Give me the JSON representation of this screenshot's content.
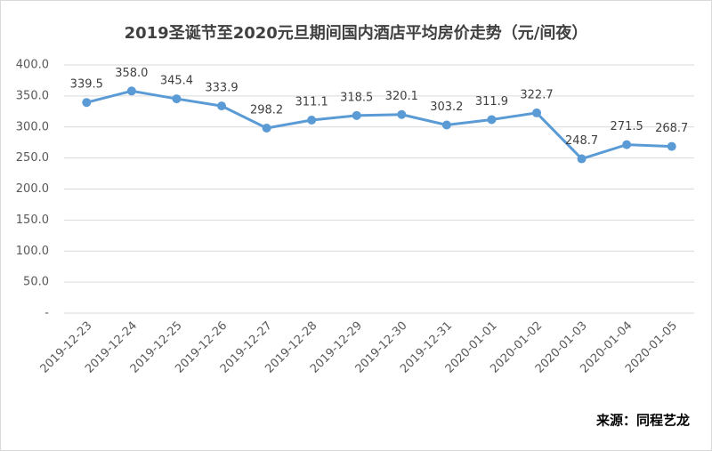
{
  "chart_data": {
    "type": "line",
    "title": "2019圣诞节至2020元旦期间国内酒店平均房价走势（元/间夜）",
    "source": "来源：同程艺龙",
    "categories": [
      "2019-12-23",
      "2019-12-24",
      "2019-12-25",
      "2019-12-26",
      "2019-12-27",
      "2019-12-28",
      "2019-12-29",
      "2019-12-30",
      "2019-12-31",
      "2020-01-01",
      "2020-01-02",
      "2020-01-03",
      "2020-01-04",
      "2020-01-05"
    ],
    "values": [
      339.5,
      358.0,
      345.4,
      333.9,
      298.2,
      311.1,
      318.5,
      320.1,
      303.2,
      311.9,
      322.7,
      248.7,
      271.5,
      268.7
    ],
    "value_labels": [
      "339.5",
      "358.0",
      "345.4",
      "333.9",
      "298.2",
      "311.1",
      "318.5",
      "320.1",
      "303.2",
      "311.9",
      "322.7",
      "248.7",
      "271.5",
      "268.7"
    ],
    "color": "#5b9bd5",
    "ylim": [
      0,
      400
    ],
    "yticks": [
      {
        "value": 0,
        "label": "-"
      },
      {
        "value": 50,
        "label": "50.0"
      },
      {
        "value": 100,
        "label": "100.0"
      },
      {
        "value": 150,
        "label": "150.0"
      },
      {
        "value": 200,
        "label": "200.0"
      },
      {
        "value": 250,
        "label": "250.0"
      },
      {
        "value": 300,
        "label": "300.0"
      },
      {
        "value": 350,
        "label": "350.0"
      },
      {
        "value": 400,
        "label": "400.0"
      }
    ],
    "grid": true
  }
}
